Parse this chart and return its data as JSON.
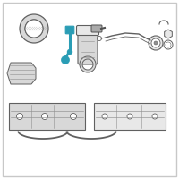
{
  "bg_color": "#ffffff",
  "border_color": "#c8c8c8",
  "line_color": "#606060",
  "highlight_color": "#2a9db5",
  "dark_gray": "#505050",
  "mid_gray": "#909090",
  "light_gray": "#cccccc",
  "fill_light": "#e8e8e8",
  "fill_mid": "#d8d8d8",
  "fig_bg": "#efefef"
}
